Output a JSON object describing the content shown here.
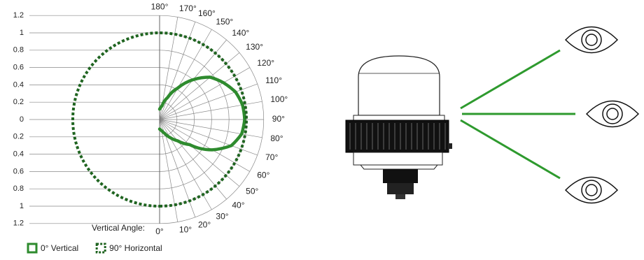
{
  "chart_data": {
    "type": "polar",
    "annotation": "Vertical Angle:",
    "rlim": [
      0,
      1.2
    ],
    "rticks": [
      0,
      0.2,
      0.4,
      0.6,
      0.8,
      1,
      1.2
    ],
    "angle_ticks": [
      {
        "value": 0,
        "label": "0°"
      },
      {
        "value": 10,
        "label": "10°"
      },
      {
        "value": 20,
        "label": "20°"
      },
      {
        "value": 30,
        "label": "30°"
      },
      {
        "value": 40,
        "label": "40°"
      },
      {
        "value": 50,
        "label": "50°"
      },
      {
        "value": 60,
        "label": "60°"
      },
      {
        "value": 70,
        "label": "70°"
      },
      {
        "value": 80,
        "label": "80°"
      },
      {
        "value": 90,
        "label": "90°"
      },
      {
        "value": 100,
        "label": "100°"
      },
      {
        "value": 110,
        "label": "110°"
      },
      {
        "value": 120,
        "label": "120°"
      },
      {
        "value": 130,
        "label": "130°"
      },
      {
        "value": 140,
        "label": "140°"
      },
      {
        "value": 150,
        "label": "150°"
      },
      {
        "value": 160,
        "label": "160°"
      },
      {
        "value": 170,
        "label": "170°"
      },
      {
        "value": 180,
        "label": "180°"
      }
    ],
    "grid": true,
    "series": [
      {
        "name": "0° Vertical",
        "color": "#2e8b2e",
        "style": "solid",
        "angles": [
          0,
          10,
          20,
          30,
          40,
          50,
          60,
          70,
          80,
          90,
          100,
          110,
          120,
          130,
          140,
          150,
          160,
          170,
          180
        ],
        "values": [
          0.11,
          0.13,
          0.17,
          0.24,
          0.32,
          0.45,
          0.7,
          0.88,
          0.96,
          0.98,
          0.97,
          0.93,
          0.85,
          0.76,
          0.6,
          0.42,
          0.27,
          0.16,
          0.12
        ]
      },
      {
        "name": "90° Horizontal",
        "color": "#1f6420",
        "style": "dotted",
        "angles": [
          0,
          30,
          60,
          90,
          120,
          150,
          180,
          210,
          240,
          270,
          300,
          330,
          360
        ],
        "values": [
          1,
          1,
          1,
          1,
          1,
          1,
          1,
          1,
          1,
          1,
          1,
          1,
          1
        ]
      }
    ]
  }
}
